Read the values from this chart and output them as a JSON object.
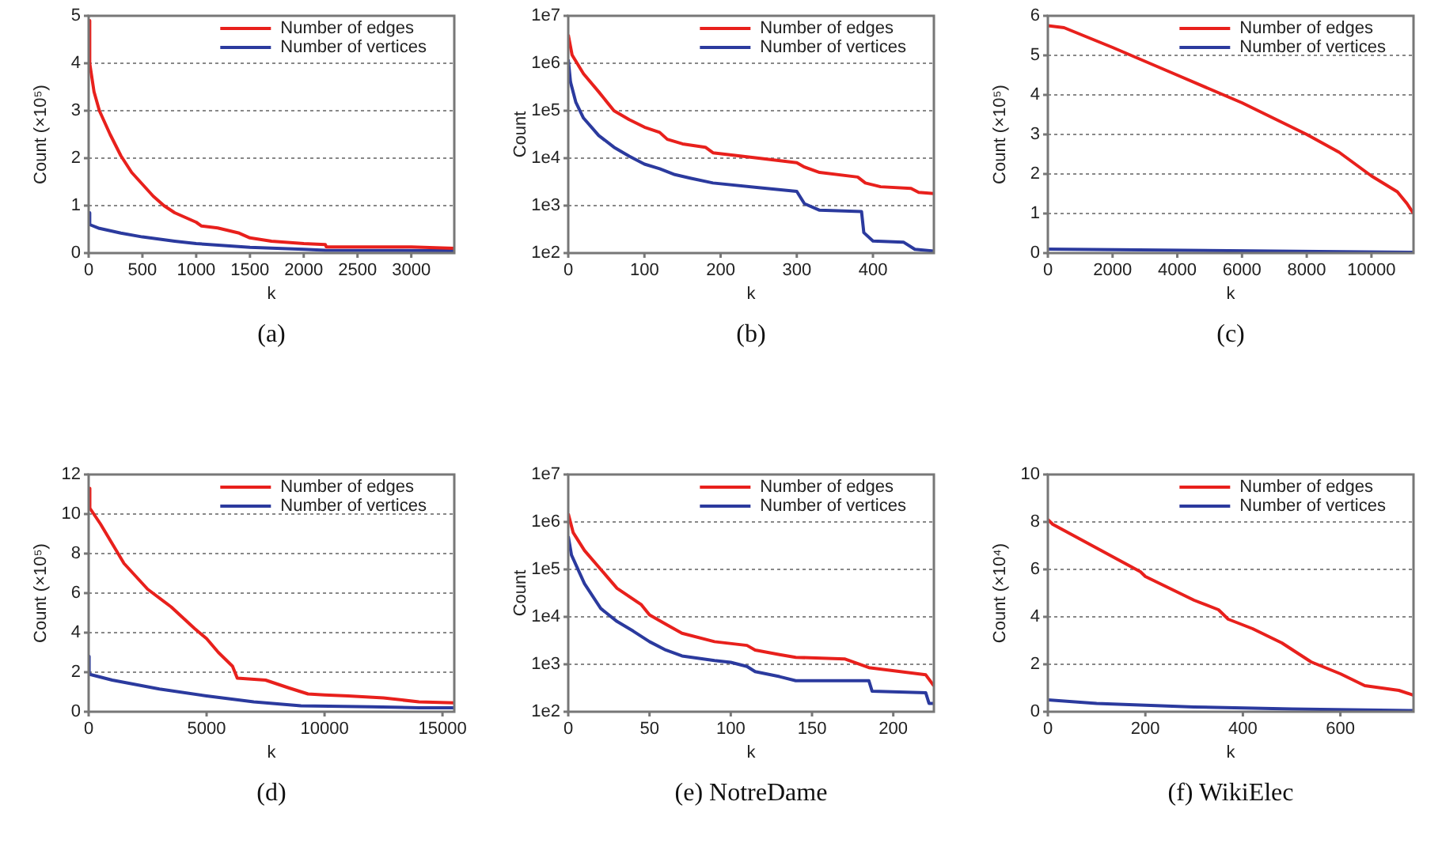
{
  "chart_data": [
    {
      "type": "line",
      "title": "(a)",
      "xlabel": "k",
      "ylabel": "Count (×10⁵)",
      "xlim": [
        0,
        3400
      ],
      "xticks": [
        0,
        500,
        1000,
        1500,
        2000,
        2500,
        3000
      ],
      "ylim": [
        0,
        5
      ],
      "yticks": [
        0,
        1,
        2,
        3,
        4,
        5
      ],
      "grid": "y",
      "legend": "top right",
      "line_style": "solid",
      "marker": "none",
      "series": [
        {
          "name": "Number of edges",
          "color": "#e8201c",
          "x": [
            0,
            10,
            50,
            100,
            200,
            300,
            400,
            500,
            600,
            700,
            800,
            900,
            1000,
            1050,
            1200,
            1400,
            1500,
            1700,
            2000,
            2200,
            2210,
            3000,
            3400
          ],
          "values": [
            4.9,
            4.0,
            3.4,
            3.0,
            2.5,
            2.05,
            1.7,
            1.45,
            1.2,
            1.0,
            0.85,
            0.75,
            0.65,
            0.57,
            0.53,
            0.42,
            0.32,
            0.25,
            0.2,
            0.18,
            0.13,
            0.13,
            0.1
          ]
        },
        {
          "name": "Number of vertices",
          "color": "#2b3a9e",
          "x": [
            0,
            10,
            100,
            300,
            500,
            800,
            1000,
            1500,
            2000,
            2200,
            3400
          ],
          "values": [
            0.85,
            0.6,
            0.52,
            0.42,
            0.34,
            0.25,
            0.2,
            0.12,
            0.08,
            0.06,
            0.05
          ]
        }
      ]
    },
    {
      "type": "line",
      "title": "(b)",
      "xlabel": "k",
      "ylabel": "Count",
      "log": "y",
      "xlim": [
        0,
        480
      ],
      "xticks": [
        0,
        100,
        200,
        300,
        400
      ],
      "ylim": [
        100,
        10000000
      ],
      "yticks": [
        {
          "value": 100,
          "label": "1e2"
        },
        {
          "value": 1000,
          "label": "1e3"
        },
        {
          "value": 10000,
          "label": "1e4"
        },
        {
          "value": 100000,
          "label": "1e5"
        },
        {
          "value": 1000000,
          "label": "1e6"
        },
        {
          "value": 10000000,
          "label": "1e7"
        }
      ],
      "grid": "y",
      "legend": "top right",
      "line_style": "solid",
      "marker": "none",
      "series": [
        {
          "name": "Number of edges",
          "color": "#e8201c",
          "x": [
            0,
            5,
            20,
            40,
            60,
            80,
            100,
            120,
            130,
            150,
            180,
            190,
            250,
            300,
            310,
            330,
            380,
            390,
            410,
            450,
            460,
            480
          ],
          "values": [
            4000000,
            1500000,
            600000,
            250000,
            100000,
            65000,
            45000,
            35000,
            25000,
            20000,
            17000,
            13000,
            10000,
            8000,
            6500,
            5000,
            4000,
            3000,
            2500,
            2300,
            1900,
            1800
          ]
        },
        {
          "name": "Number of vertices",
          "color": "#2b3a9e",
          "x": [
            0,
            3,
            10,
            20,
            40,
            60,
            80,
            100,
            120,
            140,
            160,
            190,
            250,
            300,
            310,
            330,
            385,
            388,
            400,
            440,
            455,
            480
          ],
          "values": [
            1200000,
            400000,
            150000,
            70000,
            30000,
            17000,
            11000,
            7500,
            6000,
            4500,
            3800,
            3000,
            2400,
            2000,
            1100,
            800,
            750,
            270,
            180,
            170,
            120,
            110
          ]
        }
      ]
    },
    {
      "type": "line",
      "title": "(c)",
      "xlabel": "k",
      "ylabel": "Count (×10⁵)",
      "xlim": [
        0,
        11300
      ],
      "xticks": [
        0,
        2000,
        4000,
        6000,
        8000,
        10000
      ],
      "ylim": [
        0,
        6
      ],
      "yticks": [
        0,
        1,
        2,
        3,
        4,
        5,
        6
      ],
      "grid": "y",
      "legend": "top right",
      "line_style": "solid",
      "marker": "none",
      "series": [
        {
          "name": "Number of edges",
          "color": "#e8201c",
          "x": [
            0,
            500,
            2000,
            4000,
            6000,
            8000,
            9000,
            10000,
            10800,
            11100,
            11300
          ],
          "values": [
            5.75,
            5.7,
            5.2,
            4.5,
            3.8,
            3.0,
            2.55,
            1.95,
            1.55,
            1.25,
            1.0
          ]
        },
        {
          "name": "Number of vertices",
          "color": "#2b3a9e",
          "x": [
            0,
            11300
          ],
          "values": [
            0.1,
            0.02
          ]
        }
      ]
    },
    {
      "type": "line",
      "title": "(d)",
      "xlabel": "k",
      "ylabel": "Count (×10⁵)",
      "xlim": [
        0,
        15500
      ],
      "xticks": [
        0,
        5000,
        10000,
        15000
      ],
      "ylim": [
        0,
        12
      ],
      "yticks": [
        0,
        2,
        4,
        6,
        8,
        10,
        12
      ],
      "grid": "y",
      "legend": "top right",
      "line_style": "solid",
      "marker": "none",
      "series": [
        {
          "name": "Number of edges",
          "color": "#e8201c",
          "x": [
            0,
            50,
            500,
            1000,
            1500,
            2500,
            3500,
            4500,
            5000,
            5500,
            6100,
            6300,
            7500,
            8500,
            9300,
            10000,
            11000,
            12500,
            14000,
            15500
          ],
          "values": [
            11.3,
            10.3,
            9.5,
            8.5,
            7.5,
            6.2,
            5.3,
            4.2,
            3.7,
            3.0,
            2.3,
            1.7,
            1.6,
            1.2,
            0.9,
            0.85,
            0.8,
            0.7,
            0.5,
            0.45
          ]
        },
        {
          "name": "Number of vertices",
          "color": "#2b3a9e",
          "x": [
            0,
            20,
            1000,
            3000,
            5000,
            6000,
            7000,
            8000,
            9000,
            12000,
            14000,
            15500
          ],
          "values": [
            2.8,
            1.9,
            1.6,
            1.15,
            0.8,
            0.65,
            0.5,
            0.4,
            0.3,
            0.25,
            0.2,
            0.2
          ]
        }
      ]
    },
    {
      "type": "line",
      "title": "(e) NotreDame",
      "xlabel": "k",
      "ylabel": "Count",
      "log": "y",
      "xlim": [
        0,
        225
      ],
      "xticks": [
        0,
        50,
        100,
        150,
        200
      ],
      "ylim": [
        100,
        10000000
      ],
      "yticks": [
        {
          "value": 100,
          "label": "1e2"
        },
        {
          "value": 1000,
          "label": "1e3"
        },
        {
          "value": 10000,
          "label": "1e4"
        },
        {
          "value": 100000,
          "label": "1e5"
        },
        {
          "value": 1000000,
          "label": "1e6"
        },
        {
          "value": 10000000,
          "label": "1e7"
        }
      ],
      "grid": "y",
      "legend": "top right",
      "line_style": "solid",
      "marker": "none",
      "series": [
        {
          "name": "Number of edges",
          "color": "#e8201c",
          "x": [
            0,
            3,
            10,
            20,
            30,
            45,
            50,
            60,
            70,
            90,
            110,
            115,
            130,
            140,
            170,
            185,
            220,
            225
          ],
          "values": [
            1500000,
            600000,
            250000,
            100000,
            40000,
            18000,
            11000,
            7000,
            4500,
            3000,
            2500,
            2000,
            1600,
            1400,
            1300,
            850,
            600,
            350
          ]
        },
        {
          "name": "Number of vertices",
          "color": "#2b3a9e",
          "x": [
            0,
            2,
            10,
            20,
            30,
            40,
            50,
            60,
            70,
            90,
            100,
            110,
            115,
            130,
            140,
            185,
            187,
            220,
            222,
            225
          ],
          "values": [
            500000,
            200000,
            50000,
            15000,
            8000,
            5000,
            3000,
            2000,
            1500,
            1200,
            1100,
            900,
            700,
            550,
            450,
            450,
            270,
            250,
            150,
            150
          ]
        }
      ]
    },
    {
      "type": "line",
      "title": "(f) WikiElec",
      "xlabel": "k",
      "ylabel": "Count (×10⁴)",
      "xlim": [
        0,
        750
      ],
      "xticks": [
        0,
        200,
        400,
        600
      ],
      "ylim": [
        0,
        10
      ],
      "yticks": [
        0,
        2,
        4,
        6,
        8,
        10
      ],
      "grid": "y",
      "legend": "top right",
      "line_style": "solid",
      "marker": "none",
      "series": [
        {
          "name": "Number of edges",
          "color": "#e8201c",
          "x": [
            0,
            10,
            100,
            190,
            200,
            300,
            350,
            370,
            420,
            480,
            540,
            600,
            650,
            720,
            750
          ],
          "values": [
            8.1,
            7.9,
            6.9,
            5.9,
            5.7,
            4.7,
            4.3,
            3.9,
            3.5,
            2.9,
            2.1,
            1.6,
            1.1,
            0.9,
            0.7
          ]
        },
        {
          "name": "Number of vertices",
          "color": "#2b3a9e",
          "x": [
            0,
            100,
            300,
            500,
            750
          ],
          "values": [
            0.5,
            0.35,
            0.2,
            0.12,
            0.05
          ]
        }
      ]
    }
  ]
}
